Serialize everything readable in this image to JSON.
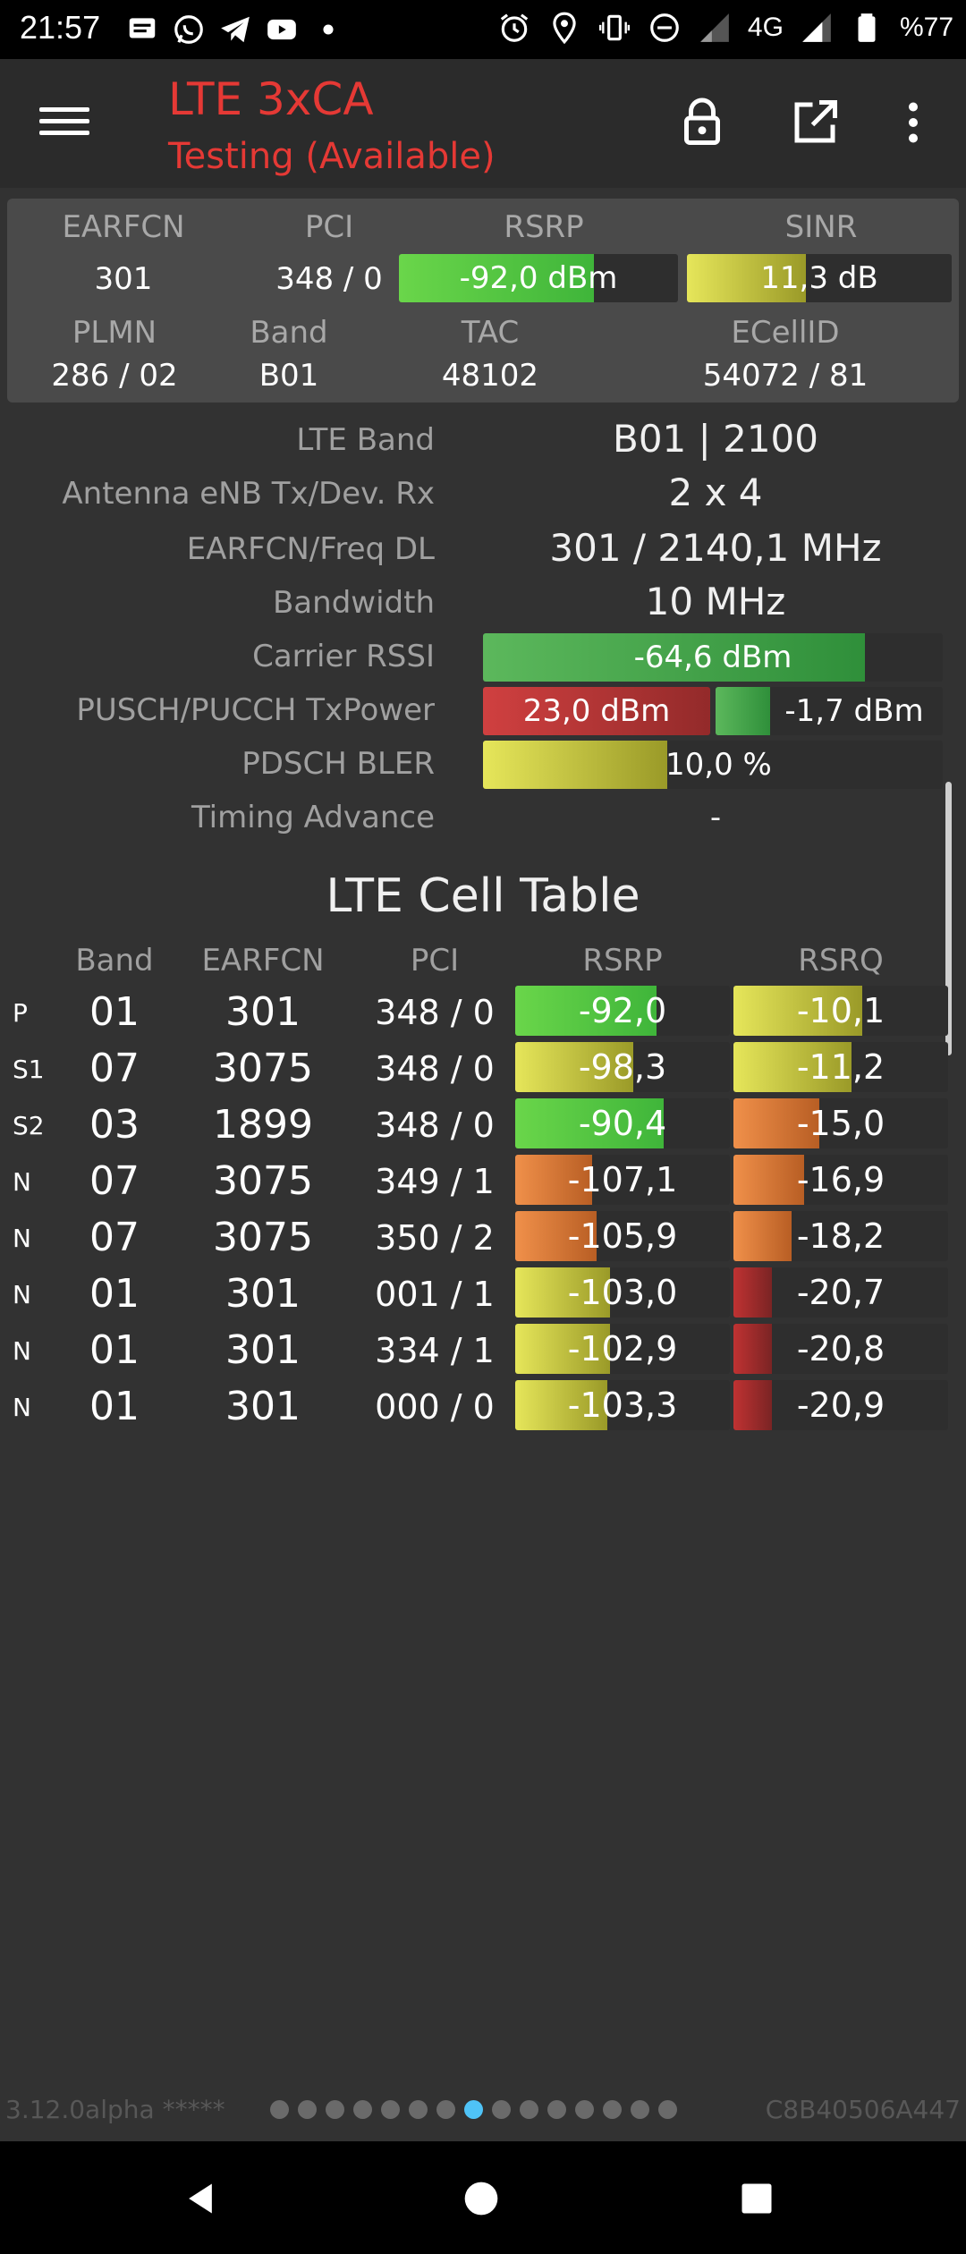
{
  "status_bar": {
    "time": "21:57",
    "network": "4G",
    "battery": "%77",
    "icons": [
      "messages-icon",
      "whatsapp-icon",
      "telegram-icon",
      "youtube-icon",
      "dot-icon",
      "alarm-icon",
      "location-icon",
      "vibrate-icon",
      "dnd-icon",
      "signal-icon",
      "signal-icon",
      "battery-icon"
    ]
  },
  "app_bar": {
    "title": "LTE 3xCA",
    "subtitle": "Testing (Available)",
    "icons": [
      "menu-icon",
      "lock-icon",
      "open-external-icon",
      "more-vert-icon"
    ]
  },
  "summary": {
    "earfcn_label": "EARFCN",
    "pci_label": "PCI",
    "rsrp_label": "RSRP",
    "sinr_label": "SINR",
    "earfcn": "301",
    "pci": "348 / 0",
    "rsrp": "-92,0 dBm",
    "rsrp_level": 0.7,
    "sinr": "11,3 dB",
    "sinr_level": 0.45,
    "plmn_label": "PLMN",
    "band_label": "Band",
    "tac_label": "TAC",
    "ecellid_label": "ECellID",
    "plmn": "286 / 02",
    "band": "B01",
    "tac": "48102",
    "ecellid": "54072 / 81"
  },
  "info": {
    "lte_band_label": "LTE Band",
    "lte_band": "B01 | 2100",
    "antenna_label": "Antenna eNB Tx/Dev. Rx",
    "antenna": "2 x 4",
    "freq_label": "EARFCN/Freq DL",
    "freq": "301 / 2140,1 MHz",
    "bandwidth_label": "Bandwidth",
    "bandwidth": "10 MHz",
    "rssi_label": "Carrier RSSI",
    "rssi": "-64,6 dBm",
    "rssi_level": 0.83,
    "txpower_label": "PUSCH/PUCCH TxPower",
    "pusch": "23,0 dBm",
    "pusch_level": 1.0,
    "pucch": "-1,7 dBm",
    "pucch_level": 0.24,
    "bler_label": "PDSCH BLER",
    "bler": "10,0 %",
    "bler_level": 0.4,
    "ta_label": "Timing Advance",
    "ta": "-"
  },
  "cell_table": {
    "title": "LTE Cell Table",
    "headers": [
      "Band",
      "EARFCN",
      "PCI",
      "RSRP",
      "RSRQ"
    ],
    "rows": [
      {
        "type": "P",
        "band": "01",
        "earfcn": "301",
        "pci": "348 / 0",
        "rsrp": "-92,0",
        "rsrp_level": 0.66,
        "rsrp_color": "green",
        "rsrq": "-10,1",
        "rsrq_level": 0.6,
        "rsrq_color": "yellow"
      },
      {
        "type": "S1",
        "band": "07",
        "earfcn": "3075",
        "pci": "348 / 0",
        "rsrp": "-98,3",
        "rsrp_level": 0.55,
        "rsrp_color": "yellow",
        "rsrq": "-11,2",
        "rsrq_level": 0.55,
        "rsrq_color": "yellow"
      },
      {
        "type": "S2",
        "band": "03",
        "earfcn": "1899",
        "pci": "348 / 0",
        "rsrp": "-90,4",
        "rsrp_level": 0.69,
        "rsrp_color": "green",
        "rsrq": "-15,0",
        "rsrq_level": 0.4,
        "rsrq_color": "orange"
      },
      {
        "type": "N",
        "band": "07",
        "earfcn": "3075",
        "pci": "349 / 1",
        "rsrp": "-107,1",
        "rsrp_level": 0.36,
        "rsrp_color": "orange",
        "rsrq": "-16,9",
        "rsrq_level": 0.33,
        "rsrq_color": "orange"
      },
      {
        "type": "N",
        "band": "07",
        "earfcn": "3075",
        "pci": "350 / 2",
        "rsrp": "-105,9",
        "rsrp_level": 0.38,
        "rsrp_color": "orange",
        "rsrq": "-18,2",
        "rsrq_level": 0.27,
        "rsrq_color": "orange"
      },
      {
        "type": "N",
        "band": "01",
        "earfcn": "301",
        "pci": "001 / 1",
        "rsrp": "-103,0",
        "rsrp_level": 0.44,
        "rsrp_color": "yellow",
        "rsrq": "-20,7",
        "rsrq_level": 0.18,
        "rsrq_color": "red"
      },
      {
        "type": "N",
        "band": "01",
        "earfcn": "301",
        "pci": "334 / 1",
        "rsrp": "-102,9",
        "rsrp_level": 0.44,
        "rsrp_color": "yellow",
        "rsrq": "-20,8",
        "rsrq_level": 0.18,
        "rsrq_color": "red"
      },
      {
        "type": "N",
        "band": "01",
        "earfcn": "301",
        "pci": "000 / 0",
        "rsrp": "-103,3",
        "rsrp_level": 0.43,
        "rsrp_color": "yellow",
        "rsrq": "-20,9",
        "rsrq_level": 0.18,
        "rsrq_color": "red"
      }
    ]
  },
  "footer": {
    "version": "3.12.0alpha *****",
    "device_id": "C8B40506A447",
    "page_count": 15,
    "active_page": 7
  },
  "nav_bar": {
    "icons": [
      "back-icon",
      "home-icon",
      "recents-icon"
    ]
  }
}
